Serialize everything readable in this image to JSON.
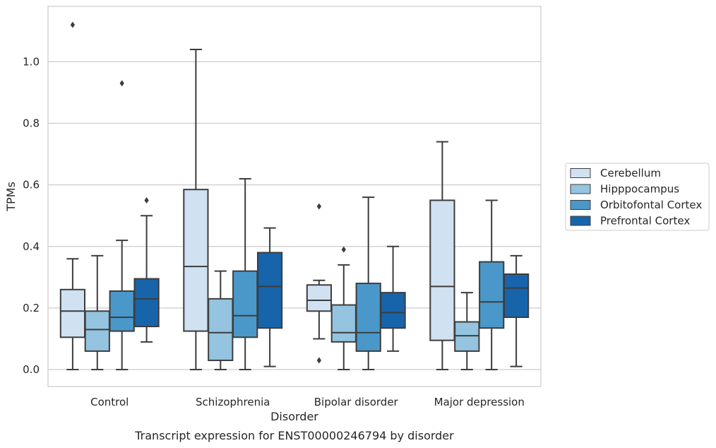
{
  "chart_data": {
    "type": "boxplot",
    "title": "",
    "caption": "Transcript expression for ENST00000246794 by disorder",
    "xlabel": "Disorder",
    "ylabel": "TPMs",
    "ylim": [
      -0.055,
      1.18
    ],
    "yticks": [
      0.0,
      0.2,
      0.4,
      0.6,
      0.8,
      1.0
    ],
    "ytick_labels": [
      "0.0",
      "0.2",
      "0.4",
      "0.6",
      "0.8",
      "1.0"
    ],
    "grid": "horizontal",
    "legend_position": "right",
    "categories": [
      "Control",
      "Schizophrenia",
      "Bipolar disorder",
      "Major depression"
    ],
    "series": [
      {
        "name": "Cerebellum",
        "color": "#d0e1f2",
        "boxes": [
          {
            "whislo": 0.0,
            "q1": 0.105,
            "med": 0.19,
            "q3": 0.26,
            "whishi": 0.36,
            "fliers": [
              1.12
            ]
          },
          {
            "whislo": 0.0,
            "q1": 0.125,
            "med": 0.335,
            "q3": 0.585,
            "whishi": 1.04,
            "fliers": []
          },
          {
            "whislo": 0.1,
            "q1": 0.19,
            "med": 0.225,
            "q3": 0.275,
            "whishi": 0.29,
            "fliers": [
              0.53,
              0.03
            ]
          },
          {
            "whislo": 0.0,
            "q1": 0.095,
            "med": 0.27,
            "q3": 0.55,
            "whishi": 0.74,
            "fliers": []
          }
        ]
      },
      {
        "name": "Hipppocampus",
        "color": "#94c4df",
        "boxes": [
          {
            "whislo": 0.0,
            "q1": 0.06,
            "med": 0.13,
            "q3": 0.19,
            "whishi": 0.37,
            "fliers": []
          },
          {
            "whislo": 0.0,
            "q1": 0.03,
            "med": 0.12,
            "q3": 0.23,
            "whishi": 0.32,
            "fliers": []
          },
          {
            "whislo": 0.0,
            "q1": 0.09,
            "med": 0.12,
            "q3": 0.21,
            "whishi": 0.34,
            "fliers": [
              0.39
            ]
          },
          {
            "whislo": 0.0,
            "q1": 0.06,
            "med": 0.11,
            "q3": 0.155,
            "whishi": 0.25,
            "fliers": []
          }
        ]
      },
      {
        "name": "Orbitofontal Cortex",
        "color": "#4a98c9",
        "boxes": [
          {
            "whislo": 0.0,
            "q1": 0.125,
            "med": 0.17,
            "q3": 0.255,
            "whishi": 0.42,
            "fliers": [
              0.93
            ]
          },
          {
            "whislo": 0.0,
            "q1": 0.105,
            "med": 0.175,
            "q3": 0.32,
            "whishi": 0.62,
            "fliers": []
          },
          {
            "whislo": 0.0,
            "q1": 0.06,
            "med": 0.12,
            "q3": 0.28,
            "whishi": 0.56,
            "fliers": []
          },
          {
            "whislo": 0.0,
            "q1": 0.135,
            "med": 0.22,
            "q3": 0.35,
            "whishi": 0.55,
            "fliers": []
          }
        ]
      },
      {
        "name": "Prefrontal Cortex",
        "color": "#1764ab",
        "boxes": [
          {
            "whislo": 0.09,
            "q1": 0.14,
            "med": 0.23,
            "q3": 0.295,
            "whishi": 0.5,
            "fliers": [
              0.55
            ]
          },
          {
            "whislo": 0.01,
            "q1": 0.135,
            "med": 0.27,
            "q3": 0.38,
            "whishi": 0.46,
            "fliers": []
          },
          {
            "whislo": 0.06,
            "q1": 0.135,
            "med": 0.185,
            "q3": 0.25,
            "whishi": 0.4,
            "fliers": []
          },
          {
            "whislo": 0.01,
            "q1": 0.17,
            "med": 0.265,
            "q3": 0.31,
            "whishi": 0.37,
            "fliers": []
          }
        ]
      }
    ]
  }
}
